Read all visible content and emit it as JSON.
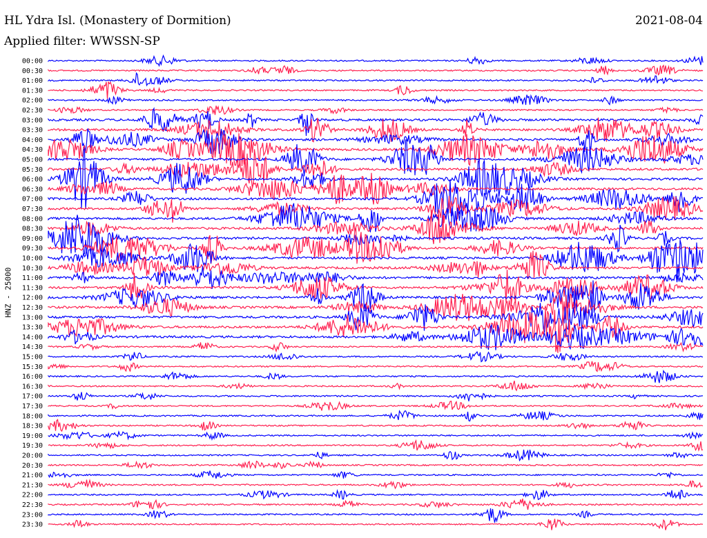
{
  "header": {
    "title": "HL Ydra Isl. (Monastery of Dormition)",
    "filter": "Applied filter: WWSSN-SP",
    "date": "2021-08-04"
  },
  "chart_data": {
    "type": "line",
    "title": "HL Ydra Isl. (Monastery of Dormition)",
    "ylabel": "HNZ - 25000",
    "row_labels": [
      "00:00",
      "00:30",
      "01:00",
      "01:30",
      "02:00",
      "02:30",
      "03:00",
      "03:30",
      "04:00",
      "04:30",
      "05:00",
      "05:30",
      "06:00",
      "06:30",
      "07:00",
      "07:30",
      "08:00",
      "08:30",
      "09:00",
      "09:30",
      "10:00",
      "10:30",
      "11:00",
      "11:30",
      "12:00",
      "12:30",
      "13:00",
      "13:30",
      "14:00",
      "14:30",
      "15:00",
      "15:30",
      "16:00",
      "16:30",
      "17:00",
      "17:30",
      "18:00",
      "18:30",
      "19:00",
      "19:30",
      "20:00",
      "20:30",
      "21:00",
      "21:30",
      "22:00",
      "22:30",
      "23:00",
      "23:30"
    ],
    "colors": [
      "#0000ff",
      "#ff1f4f"
    ],
    "color_pattern": "alternating by row: blue, red",
    "grid": false
  }
}
